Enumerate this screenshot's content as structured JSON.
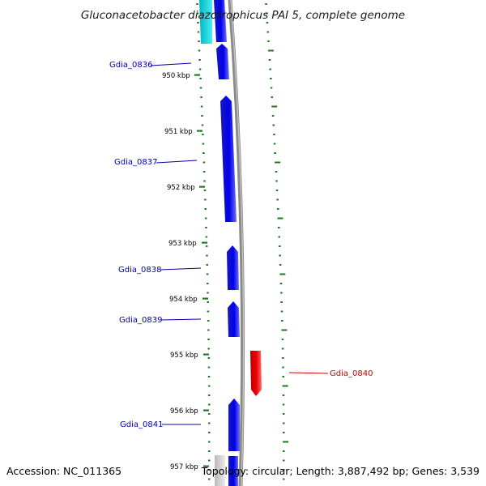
{
  "title": "Gluconacetobacter diazotrophicus PAI 5, complete genome",
  "footer": {
    "accession": "Accession: NC_011365",
    "topology": "Topology: circular; Length: 3,887,492 bp; Genes: 3,539"
  },
  "colors": {
    "forward_gene": "#0000ee",
    "reverse_gene": "#ee0000",
    "neighbor_gene": "#00e5ee",
    "backbone": "#8c8c8c",
    "tick": "#1f7a1f",
    "forward_label": "#0000aa",
    "reverse_label": "#cc0000"
  },
  "kbp_ticks": [
    "950 kbp",
    "951 kbp",
    "952 kbp",
    "953 kbp",
    "954 kbp",
    "955 kbp",
    "956 kbp",
    "957 kbp"
  ],
  "genes": [
    {
      "id": "partial-top",
      "strand": "+"
    },
    {
      "id": "Gdia_0836",
      "label": "Gdia_0836",
      "strand": "+"
    },
    {
      "id": "Gdia_0837",
      "label": "Gdia_0837",
      "strand": "+"
    },
    {
      "id": "Gdia_0838",
      "label": "Gdia_0838",
      "strand": "+"
    },
    {
      "id": "Gdia_0839",
      "label": "Gdia_0839",
      "strand": "+"
    },
    {
      "id": "Gdia_0840",
      "label": "Gdia_0840",
      "strand": "-"
    },
    {
      "id": "Gdia_0841",
      "label": "Gdia_0841",
      "strand": "+"
    },
    {
      "id": "partial-bottom",
      "strand": "+"
    }
  ]
}
